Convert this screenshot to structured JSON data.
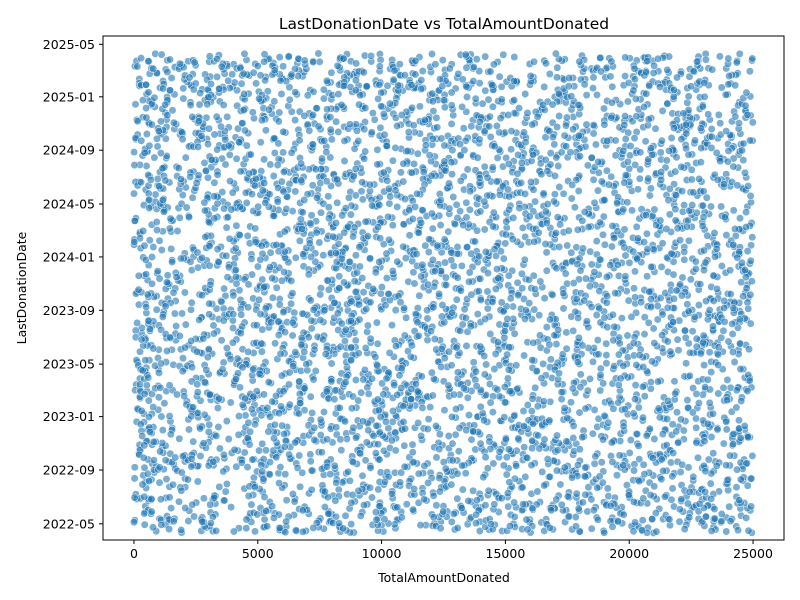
{
  "chart_data": {
    "type": "scatter",
    "title": "LastDonationDate vs TotalAmountDonated",
    "xlabel": "TotalAmountDonated",
    "ylabel": "LastDonationDate",
    "xlim": [
      -1250,
      26250
    ],
    "ylim": [
      "2022-03-25",
      "2025-05-20"
    ],
    "x_ticks": [
      0,
      5000,
      10000,
      15000,
      20000,
      25000
    ],
    "x_tick_labels": [
      "0",
      "5000",
      "10000",
      "15000",
      "20000",
      "25000"
    ],
    "y_ticks": [
      "2022-05-01",
      "2022-09-01",
      "2023-01-01",
      "2023-05-01",
      "2023-09-01",
      "2024-01-01",
      "2024-05-01",
      "2024-09-01",
      "2025-01-01",
      "2025-05-01"
    ],
    "y_tick_labels": [
      "2022-05",
      "2022-09",
      "2023-01",
      "2023-05",
      "2023-09",
      "2024-01",
      "2024-05",
      "2024-09",
      "2025-01",
      "2025-05"
    ],
    "grid": false,
    "legend": "none",
    "marker_color": "#1f77b4",
    "marker_alpha": 0.6,
    "x_range": [
      0,
      25000
    ],
    "date_range": [
      "2022-04-10",
      "2025-04-10"
    ],
    "point_count": 5000,
    "distribution": "uniform random over x_range and date_range"
  }
}
